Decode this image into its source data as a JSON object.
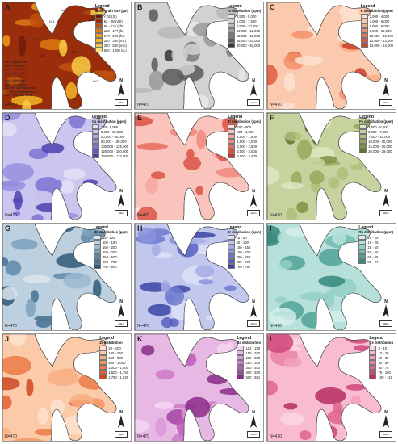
{
  "legend_title": "Legend",
  "panels": [
    {
      "label": "A",
      "subtitle": "Mean grain size (µm)",
      "n": "N=470",
      "classes": [
        "< 62 (Sl)",
        "62 - 88 (vfS)",
        "88 - 125 (vfS)",
        "125 - 177 (fL)",
        "177 - 250 (fU)",
        "250 - 350 (mL)",
        "350 - 500 (mU)",
        "500 - 1000 (cL)"
      ],
      "colors": [
        "#6e1a0a",
        "#9a2e0c",
        "#c1510f",
        "#dd7a12",
        "#ec9a1a",
        "#f4b627",
        "#f8cd45",
        "#fbe17a"
      ]
    },
    {
      "label": "B",
      "subtitle": "Al distribution (ppm)",
      "n": "N=470",
      "classes": [
        "3,500 - 5,000",
        "5,000 - 7,500",
        "7,500 - 10,000",
        "10,000 - 12,000",
        "12,000 - 15,000",
        "15,000 - 20,000",
        "20,000 - 82,000"
      ],
      "colors": [
        "#e8e8e8",
        "#d2d2d2",
        "#b8b8b8",
        "#9a9a9a",
        "#7b7b7b",
        "#5b5b5b",
        "#353535"
      ]
    },
    {
      "label": "C",
      "subtitle": "K distribution (ppm)",
      "n": "N=470",
      "classes": [
        "2,000 - 4,000",
        "4,000 - 6,000",
        "6,000 - 8,000",
        "8,000 - 10,000",
        "10,000 - 12,000",
        "12,000 - 13,000",
        "13,000 - 14,000"
      ],
      "colors": [
        "#fde2d2",
        "#fbc9ad",
        "#f8ad88",
        "#f3906a",
        "#ec7453",
        "#e05a3f",
        "#c9402d"
      ]
    },
    {
      "label": "D",
      "subtitle": "Ca distribution (ppm)",
      "n": "N=470",
      "classes": [
        "120 - 5,000",
        "5,000 - 20,000",
        "20,000 - 50,000",
        "50,000 - 100,000",
        "100,000 - 125,000",
        "125,000 - 150,000",
        "150,000 - 172,000"
      ],
      "colors": [
        "#e3e0f7",
        "#cbc6f0",
        "#b1aae8",
        "#968ede",
        "#7d72d2",
        "#6759c3",
        "#4f3fae"
      ]
    },
    {
      "label": "E",
      "subtitle": "Ti distribution (ppm)",
      "n": "N=470",
      "classes": [
        "200 - 800",
        "800 - 1,000",
        "1,000 - 1,500",
        "1,500 - 2,000",
        "2,000 - 2,500",
        "2,500 - 3,000",
        "3,000 - 3,400"
      ],
      "colors": [
        "#fde0dc",
        "#fac4bd",
        "#f6a79d",
        "#f08a7e",
        "#e86d60",
        "#db5245",
        "#c63a2e"
      ]
    },
    {
      "label": "F",
      "subtitle": "Fe distribution (ppm)",
      "n": "N=470",
      "classes": [
        "2,500 - 5,000",
        "5,000 - 7,000",
        "7,000 - 10,000",
        "10,000 - 15,000",
        "15,000 - 20,000",
        "20,000 - 29,000"
      ],
      "colors": [
        "#dfe6c2",
        "#c7d39e",
        "#aebf7b",
        "#95a95c",
        "#7c9244",
        "#5f7430"
      ]
    },
    {
      "label": "G",
      "subtitle": "Mn distribution (ppm)",
      "n": "N=470",
      "classes": [
        "45 - 100",
        "100 - 150",
        "150 - 200",
        "200 - 250",
        "250 - 500",
        "500 - 700",
        "700 - 900"
      ],
      "colors": [
        "#dbe6ef",
        "#bcd0e0",
        "#9cb9cf",
        "#7ea2bd",
        "#618aa9",
        "#477292",
        "#2f5977"
      ]
    },
    {
      "label": "H",
      "subtitle": "Sr distribution (ppm)",
      "n": "N=470",
      "classes": [
        "15 - 50",
        "50 - 100",
        "100 - 150",
        "150 - 200",
        "200 - 250",
        "250 - 700",
        "700 - 797"
      ],
      "colors": [
        "#dde0f6",
        "#c2c7ee",
        "#a6ade5",
        "#8a93dc",
        "#6f79cf",
        "#5660bf",
        "#3c45a5"
      ]
    },
    {
      "label": "I",
      "subtitle": "Rb distribution (ppm)",
      "n": "N=470",
      "classes": [
        "10 - 15",
        "15 - 25",
        "25 - 50",
        "50 - 65",
        "65 - 85",
        "85 - 97"
      ],
      "colors": [
        "#d6efeb",
        "#b6e1db",
        "#93cfc6",
        "#72bab0",
        "#52a297",
        "#35877c"
      ]
    },
    {
      "label": "J",
      "subtitle": "Zr distribution",
      "n": "N=470",
      "classes": [
        "29 - 100",
        "100 - 250",
        "250 - 500",
        "500 - 1,000",
        "1,000 - 1,500",
        "1,500 - 1,750",
        "1,750 - 1,929"
      ],
      "colors": [
        "#fde3cf",
        "#fbcaa9",
        "#f8af84",
        "#f39564",
        "#ec7a48",
        "#e16132",
        "#cd4822"
      ]
    },
    {
      "label": "K",
      "subtitle": "Ba distribution",
      "n": "N=470",
      "classes": [
        "102 - 150",
        "150 - 200",
        "200 - 250",
        "250 - 300",
        "300 - 400",
        "400 - 500",
        "500 - 561"
      ],
      "colors": [
        "#f3d6f1",
        "#e8b8e5",
        "#dc98d8",
        "#cd7ac9",
        "#bc5cb8",
        "#a643a3",
        "#8a2c88"
      ]
    },
    {
      "label": "L",
      "subtitle": "Cs distribution",
      "n": "N=470",
      "classes": [
        "8 - 10",
        "10 - 20",
        "20 - 30",
        "30 - 50",
        "50 - 75",
        "75 - 100",
        "100 - 119"
      ],
      "colors": [
        "#fcd6e2",
        "#f8bbcf",
        "#f29fbb",
        "#ea82a6",
        "#df6491",
        "#cf477b",
        "#b72e64"
      ]
    }
  ],
  "panel_a_abbreviations": [
    "Dz1: gravel bed",
    "Dz2: mud flat",
    "Dz3: mixed flat",
    "Dz4: sand flat",
    "Dz5: tidal burn",
    "Dz6: tidal inlet",
    "Dz7: backshore",
    "NDe8: north foreshore",
    "SDe8: south foreshore",
    "Dz9: ebb tidal delta"
  ],
  "panel_a_zones": [
    "Dz4",
    "Dz3",
    "Dz5",
    "Dz6",
    "Dz2",
    "Dz1",
    "Dz7",
    "Dz8"
  ],
  "north_label": "N",
  "scale_label": "10km"
}
